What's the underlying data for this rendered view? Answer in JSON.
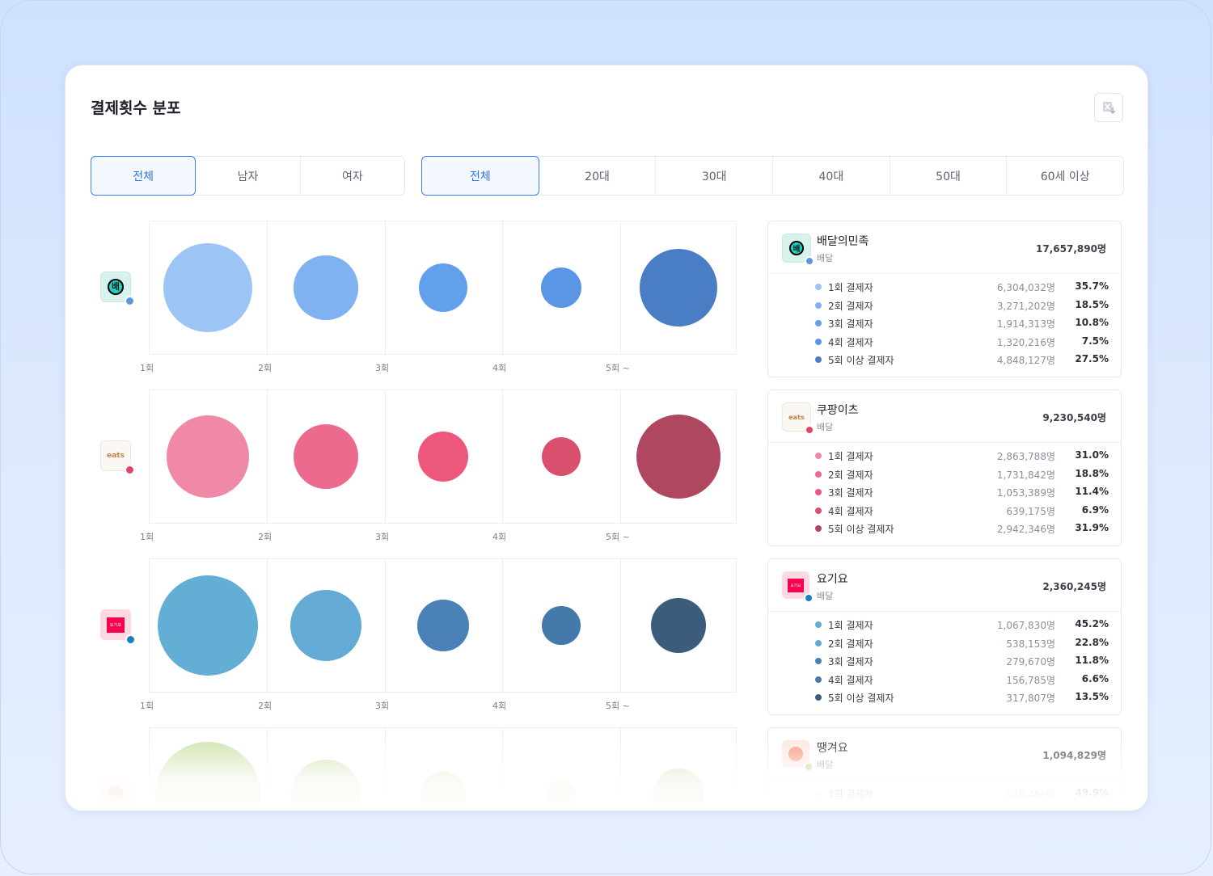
{
  "page": {
    "title": "결제횟수 분포",
    "export_icon": "excel-download-icon"
  },
  "filters": {
    "gender": [
      {
        "label": "전체",
        "active": true
      },
      {
        "label": "남자",
        "active": false
      },
      {
        "label": "여자",
        "active": false
      }
    ],
    "age": [
      {
        "label": "전체",
        "active": true
      },
      {
        "label": "20대",
        "active": false
      },
      {
        "label": "30대",
        "active": false
      },
      {
        "label": "40대",
        "active": false
      },
      {
        "label": "50대",
        "active": false
      },
      {
        "label": "60세 이상",
        "active": false
      }
    ]
  },
  "chart_data": {
    "type": "scatter",
    "x_categories": [
      "1회",
      "2회",
      "3회",
      "4회",
      "5회 ~"
    ],
    "series": [
      {
        "name": "배달의민족",
        "category": "배달",
        "total": "17,657,890명",
        "logo_text": "배",
        "logo_icon": "baemin-logo-icon",
        "accent": "#5b95e6",
        "colors": [
          "#9cc4f5",
          "#80b2f2",
          "#62a0ec",
          "#5b95e6",
          "#4a7ec4"
        ],
        "values": [
          35.7,
          18.5,
          10.8,
          7.5,
          27.5
        ],
        "rows": [
          {
            "label": "1회 결제자",
            "count": "6,304,032명",
            "pct": "35.7%"
          },
          {
            "label": "2회 결제자",
            "count": "3,271,202명",
            "pct": "18.5%"
          },
          {
            "label": "3회 결제자",
            "count": "1,914,313명",
            "pct": "10.8%"
          },
          {
            "label": "4회 결제자",
            "count": "1,320,216명",
            "pct": "7.5%"
          },
          {
            "label": "5회 이상 결제자",
            "count": "4,848,127명",
            "pct": "27.5%"
          }
        ]
      },
      {
        "name": "쿠팡이츠",
        "category": "배달",
        "total": "9,230,540명",
        "logo_text": "eats",
        "logo_icon": "coupang-eats-logo-icon",
        "accent": "#e0456a",
        "colors": [
          "#ef89a6",
          "#ec6a8d",
          "#ef587d",
          "#d9506f",
          "#b04760"
        ],
        "values": [
          31.0,
          18.8,
          11.4,
          6.9,
          31.9
        ],
        "rows": [
          {
            "label": "1회 결제자",
            "count": "2,863,788명",
            "pct": "31.0%"
          },
          {
            "label": "2회 결제자",
            "count": "1,731,842명",
            "pct": "18.8%"
          },
          {
            "label": "3회 결제자",
            "count": "1,053,389명",
            "pct": "11.4%"
          },
          {
            "label": "4회 결제자",
            "count": "639,175명",
            "pct": "6.9%"
          },
          {
            "label": "5회 이상 결제자",
            "count": "2,942,346명",
            "pct": "31.9%"
          }
        ]
      },
      {
        "name": "요기요",
        "category": "배달",
        "total": "2,360,245명",
        "logo_text": "요기요",
        "logo_icon": "yogiyo-logo-icon",
        "accent": "#1a7fc1",
        "colors": [
          "#63aed5",
          "#63aad4",
          "#4a82b8",
          "#4579a9",
          "#3d5c7b"
        ],
        "values": [
          45.2,
          22.8,
          11.8,
          6.6,
          13.5
        ],
        "rows": [
          {
            "label": "1회 결제자",
            "count": "1,067,830명",
            "pct": "45.2%"
          },
          {
            "label": "2회 결제자",
            "count": "538,153명",
            "pct": "22.8%"
          },
          {
            "label": "3회 결제자",
            "count": "279,670명",
            "pct": "11.8%"
          },
          {
            "label": "4회 결제자",
            "count": "156,785명",
            "pct": "6.6%"
          },
          {
            "label": "5회 이상 결제자",
            "count": "317,807명",
            "pct": "13.5%"
          }
        ]
      },
      {
        "name": "땡겨요",
        "category": "배달",
        "total": "1,094,829명",
        "logo_text": "",
        "logo_icon": "ddangyo-logo-icon",
        "accent": "#a8d37a",
        "colors": [
          "#cfe3b0",
          "#d0e3b4",
          "#d3e6bc",
          "#d5e8bf",
          "#c8dcb0"
        ],
        "values": [
          49.9,
          22.0,
          9.0,
          4.0,
          12.0
        ],
        "rows": [
          {
            "label": "1회 결제자",
            "count": "546,456명",
            "pct": "49.9%"
          }
        ]
      }
    ]
  }
}
